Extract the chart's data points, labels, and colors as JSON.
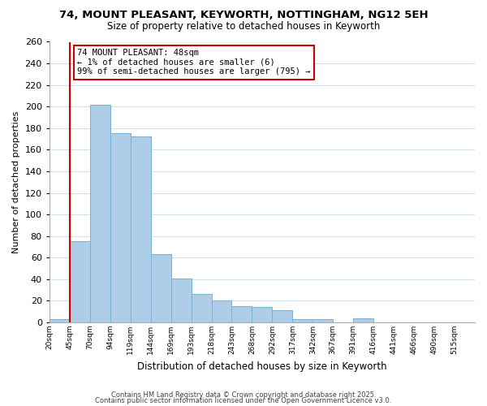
{
  "title": "74, MOUNT PLEASANT, KEYWORTH, NOTTINGHAM, NG12 5EH",
  "subtitle": "Size of property relative to detached houses in Keyworth",
  "xlabel": "Distribution of detached houses by size in Keyworth",
  "ylabel": "Number of detached properties",
  "bar_color": "#aecde8",
  "bar_edge_color": "#7aafd4",
  "grid_color": "#cce0f0",
  "vline_color": "#cc0000",
  "vline_x": 1,
  "annotation_title": "74 MOUNT PLEASANT: 48sqm",
  "annotation_line1": "← 1% of detached houses are smaller (6)",
  "annotation_line2": "99% of semi-detached houses are larger (795) →",
  "categories": [
    "20sqm",
    "45sqm",
    "70sqm",
    "94sqm",
    "119sqm",
    "144sqm",
    "169sqm",
    "193sqm",
    "218sqm",
    "243sqm",
    "268sqm",
    "292sqm",
    "317sqm",
    "342sqm",
    "367sqm",
    "391sqm",
    "416sqm",
    "441sqm",
    "466sqm",
    "490sqm",
    "515sqm"
  ],
  "bar_heights": [
    3,
    75,
    202,
    175,
    172,
    63,
    41,
    26,
    20,
    15,
    14,
    11,
    3,
    3,
    0,
    4,
    0,
    0,
    0,
    0,
    0
  ],
  "ylim": [
    0,
    260
  ],
  "yticks": [
    0,
    20,
    40,
    60,
    80,
    100,
    120,
    140,
    160,
    180,
    200,
    220,
    240,
    260
  ],
  "footer1": "Contains HM Land Registry data © Crown copyright and database right 2025.",
  "footer2": "Contains public sector information licensed under the Open Government Licence v3.0."
}
